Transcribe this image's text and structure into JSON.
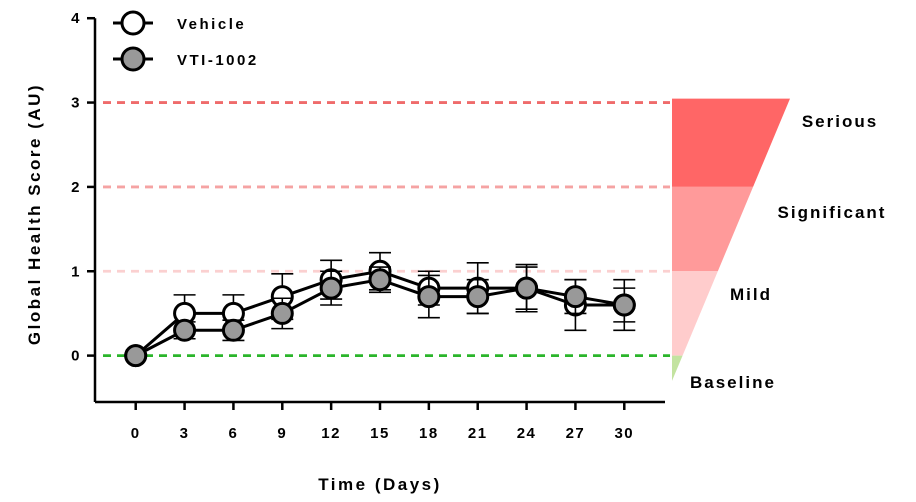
{
  "chart_data": {
    "type": "line",
    "xlabel": "Time (Days)",
    "ylabel": "Global Health Score (AU)",
    "x": [
      0,
      3,
      6,
      9,
      12,
      15,
      18,
      21,
      24,
      27,
      30
    ],
    "x_ticks": [
      "0",
      "3",
      "6",
      "9",
      "12",
      "15",
      "18",
      "21",
      "24",
      "27",
      "30"
    ],
    "y_ticks": [
      "0",
      "1",
      "2",
      "3",
      "4"
    ],
    "xlim": [
      -2.5,
      32.5
    ],
    "ylim": [
      -0.55,
      4.05
    ],
    "series": [
      {
        "name": "Vehicle",
        "marker": "open-circle",
        "fill": "#ffffff",
        "values": [
          0,
          0.5,
          0.5,
          0.7,
          0.9,
          1.0,
          0.8,
          0.8,
          0.8,
          0.6,
          0.6
        ],
        "error": [
          0,
          0.22,
          0.22,
          0.27,
          0.23,
          0.22,
          0.2,
          0.3,
          0.28,
          0.3,
          0.3
        ]
      },
      {
        "name": "VTI-1002",
        "marker": "filled-circle",
        "fill": "#999999",
        "values": [
          0,
          0.3,
          0.3,
          0.5,
          0.8,
          0.9,
          0.7,
          0.7,
          0.8,
          0.7,
          0.6
        ],
        "error": [
          0,
          0.1,
          0.12,
          0.18,
          0.2,
          0.15,
          0.25,
          0.2,
          0.25,
          0.2,
          0.2
        ]
      }
    ],
    "reference_lines": [
      {
        "y": 3,
        "color": "#ef6b6b"
      },
      {
        "y": 2,
        "color": "#f5a3a3"
      },
      {
        "y": 1,
        "color": "#fbd0d0"
      },
      {
        "y": 0,
        "color": "#2bb52b"
      }
    ],
    "severity_scale": [
      {
        "label": "Serious",
        "from": 2,
        "to": 3,
        "color": "#ff6666"
      },
      {
        "label": "Significant",
        "from": 1,
        "to": 2,
        "color": "#ff9a9a"
      },
      {
        "label": "Mild",
        "from": 0,
        "to": 1,
        "color": "#ffcccc"
      },
      {
        "label": "Baseline",
        "from": -0.3,
        "to": 0,
        "color": "#c3e3a0"
      }
    ],
    "grid": false,
    "legend_position": "top-left"
  }
}
